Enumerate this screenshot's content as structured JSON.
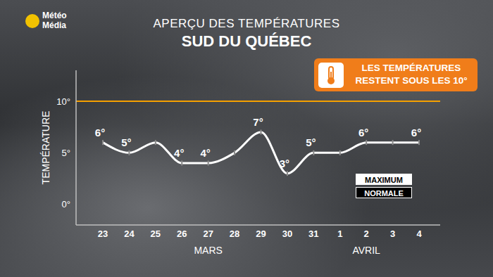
{
  "chart_data": {
    "type": "line",
    "logo": "Météo Média",
    "title": "APERÇU DES TEMPÉRATURES",
    "subtitle": "SUD DU QUÉBEC",
    "annotation": "LES TEMPÉRATURES RESTENT SOUS LES 10°",
    "y_label": "TEMPÉRATURE",
    "categories": [
      "23",
      "24",
      "25",
      "26",
      "27",
      "28",
      "29",
      "30",
      "31",
      "1",
      "2",
      "3",
      "4"
    ],
    "month_labels": [
      {
        "label": "MARS",
        "at": "27"
      },
      {
        "label": "AVRIL",
        "at": "2"
      }
    ],
    "series": [
      {
        "name": "MAXIMUM",
        "color": "#ffffff",
        "values": [
          6,
          5,
          6,
          4,
          4,
          5,
          7,
          3,
          5,
          5,
          6,
          6,
          6
        ],
        "value_labels": [
          "6°",
          "5°",
          null,
          "4°",
          "4°",
          null,
          "7°",
          "3°",
          "5°",
          null,
          "6°",
          null,
          "6°"
        ]
      },
      {
        "name": "NORMALE",
        "color": "#000000",
        "values": [
          null,
          null,
          null,
          null,
          null,
          null,
          null,
          null,
          null,
          null,
          null,
          null,
          null
        ]
      }
    ],
    "reference_line": {
      "value": 10,
      "color": "#f5a000"
    },
    "ylim": [
      -2,
      13
    ],
    "yticks": [
      {
        "value": 0,
        "label": "0°"
      },
      {
        "value": 5,
        "label": "5°"
      },
      {
        "value": 10,
        "label": "10°"
      }
    ],
    "data_labels": true,
    "grid": false
  }
}
